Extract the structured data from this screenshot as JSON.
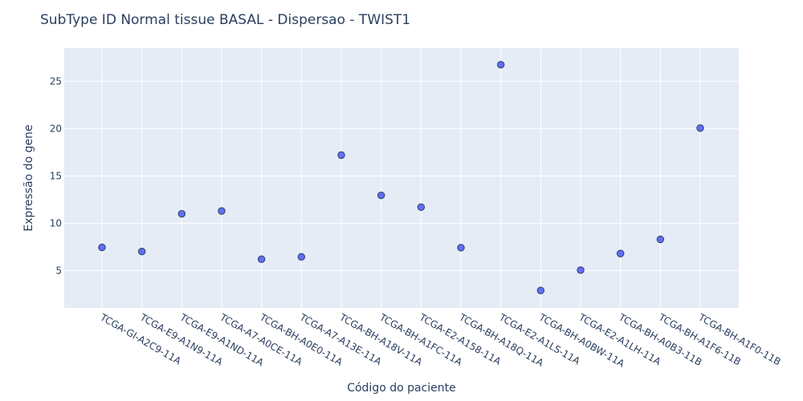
{
  "chart_data": {
    "type": "scatter",
    "title": "SubType ID Normal tissue BASAL - Dispersao - TWIST1",
    "xlabel": "Código do paciente",
    "ylabel": "Expressão do gene",
    "categories": [
      "TCGA-GI-A2C9-11A",
      "TCGA-E9-A1N9-11A",
      "TCGA-E9-A1ND-11A",
      "TCGA-A7-A0CE-11A",
      "TCGA-BH-A0E0-11A",
      "TCGA-A7-A13E-11A",
      "TCGA-BH-A18V-11A",
      "TCGA-BH-A1FC-11A",
      "TCGA-E2-A158-11A",
      "TCGA-BH-A18Q-11A",
      "TCGA-E2-A1LS-11A",
      "TCGA-BH-A0BW-11A",
      "TCGA-E2-A1LH-11A",
      "TCGA-BH-A0B3-11B",
      "TCGA-BH-A1F6-11B",
      "TCGA-BH-A1F0-11B"
    ],
    "values": [
      7.45,
      7.02,
      11.0,
      11.3,
      6.2,
      6.45,
      17.2,
      12.95,
      11.7,
      7.42,
      26.75,
      2.9,
      5.05,
      6.8,
      8.3,
      20.05
    ],
    "yticks": [
      5,
      10,
      15,
      20,
      25
    ],
    "ylim": [
      1.05,
      28.5
    ],
    "grid": true,
    "colors": {
      "marker": "#636efa",
      "marker_outline": "#2a3f5f",
      "plot_bg": "#e5ecf6",
      "text": "#2a3f5f"
    }
  }
}
